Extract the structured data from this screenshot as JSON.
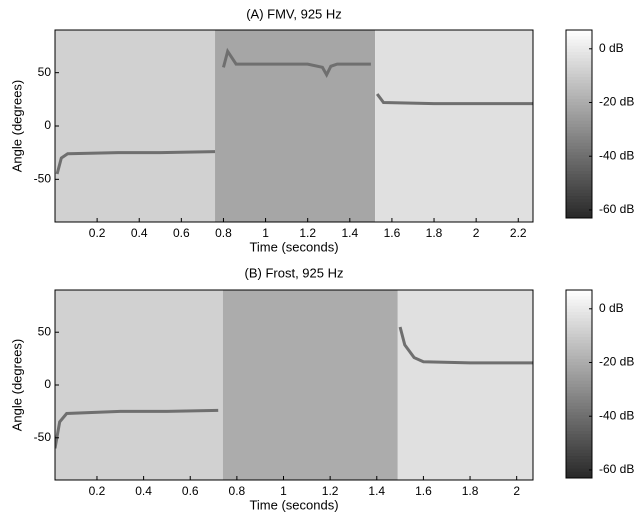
{
  "chart_data": [
    {
      "type": "heatmap",
      "title": "(A) FMV, 925 Hz",
      "xlabel": "Time (seconds)",
      "ylabel": "Angle (degrees)",
      "xlim": [
        0,
        2.27
      ],
      "ylim": [
        -90,
        90
      ],
      "xticks": [
        0.2,
        0.4,
        0.6,
        0.8,
        1,
        1.2,
        1.4,
        1.6,
        1.8,
        2,
        2.2
      ],
      "yticks": [
        -50,
        0,
        50
      ],
      "regions": [
        {
          "x": [
            0,
            0.76
          ],
          "level": -8
        },
        {
          "x": [
            0.76,
            1.52
          ],
          "level": -22
        },
        {
          "x": [
            1.52,
            2.27
          ],
          "level": -3
        }
      ],
      "track": {
        "x": [
          0.01,
          0.03,
          0.06,
          0.3,
          0.5,
          0.76,
          0.77,
          0.8,
          0.82,
          0.86,
          1.0,
          1.2,
          1.27,
          1.29,
          1.31,
          1.34,
          1.5,
          1.52,
          1.53,
          1.56,
          1.8,
          2.0,
          2.27
        ],
        "y": [
          -45,
          -30,
          -26,
          -25,
          -25,
          -24,
          null,
          55,
          70,
          58,
          58,
          58,
          55,
          48,
          56,
          58,
          58,
          null,
          30,
          22,
          21,
          21,
          21
        ],
        "level": -40
      },
      "colorbar": {
        "clim": [
          -63,
          7
        ],
        "ticks": [
          {
            "value": 0,
            "label": "0 dB"
          },
          {
            "value": -20,
            "label": "-20 dB"
          },
          {
            "value": -40,
            "label": "-40 dB"
          },
          {
            "value": -60,
            "label": "-60 dB"
          }
        ]
      }
    },
    {
      "type": "heatmap",
      "title": "(B) Frost, 925 Hz",
      "xlabel": "Time (seconds)",
      "ylabel": "Angle (degrees)",
      "xlim": [
        0.02,
        2.07
      ],
      "ylim": [
        -90,
        90
      ],
      "xticks": [
        0.2,
        0.4,
        0.6,
        0.8,
        1,
        1.2,
        1.4,
        1.6,
        1.8,
        2
      ],
      "yticks": [
        -50,
        0,
        50
      ],
      "regions": [
        {
          "x": [
            0.02,
            0.74
          ],
          "level": -8
        },
        {
          "x": [
            0.74,
            1.49
          ],
          "level": -20
        },
        {
          "x": [
            1.49,
            2.07
          ],
          "level": -3
        }
      ],
      "track": {
        "x": [
          0.02,
          0.04,
          0.07,
          0.3,
          0.5,
          0.72,
          0.74,
          1.5,
          1.52,
          1.56,
          1.6,
          1.8,
          2.0,
          2.07
        ],
        "y": [
          -60,
          -35,
          -27,
          -25,
          -25,
          -24,
          null,
          55,
          38,
          26,
          22,
          21,
          21,
          21
        ],
        "level": -40
      },
      "colorbar": {
        "clim": [
          -63,
          7
        ],
        "ticks": [
          {
            "value": 0,
            "label": "0 dB"
          },
          {
            "value": -20,
            "label": "-20 dB"
          },
          {
            "value": -40,
            "label": "-40 dB"
          },
          {
            "value": -60,
            "label": "-60 dB"
          }
        ]
      }
    }
  ]
}
